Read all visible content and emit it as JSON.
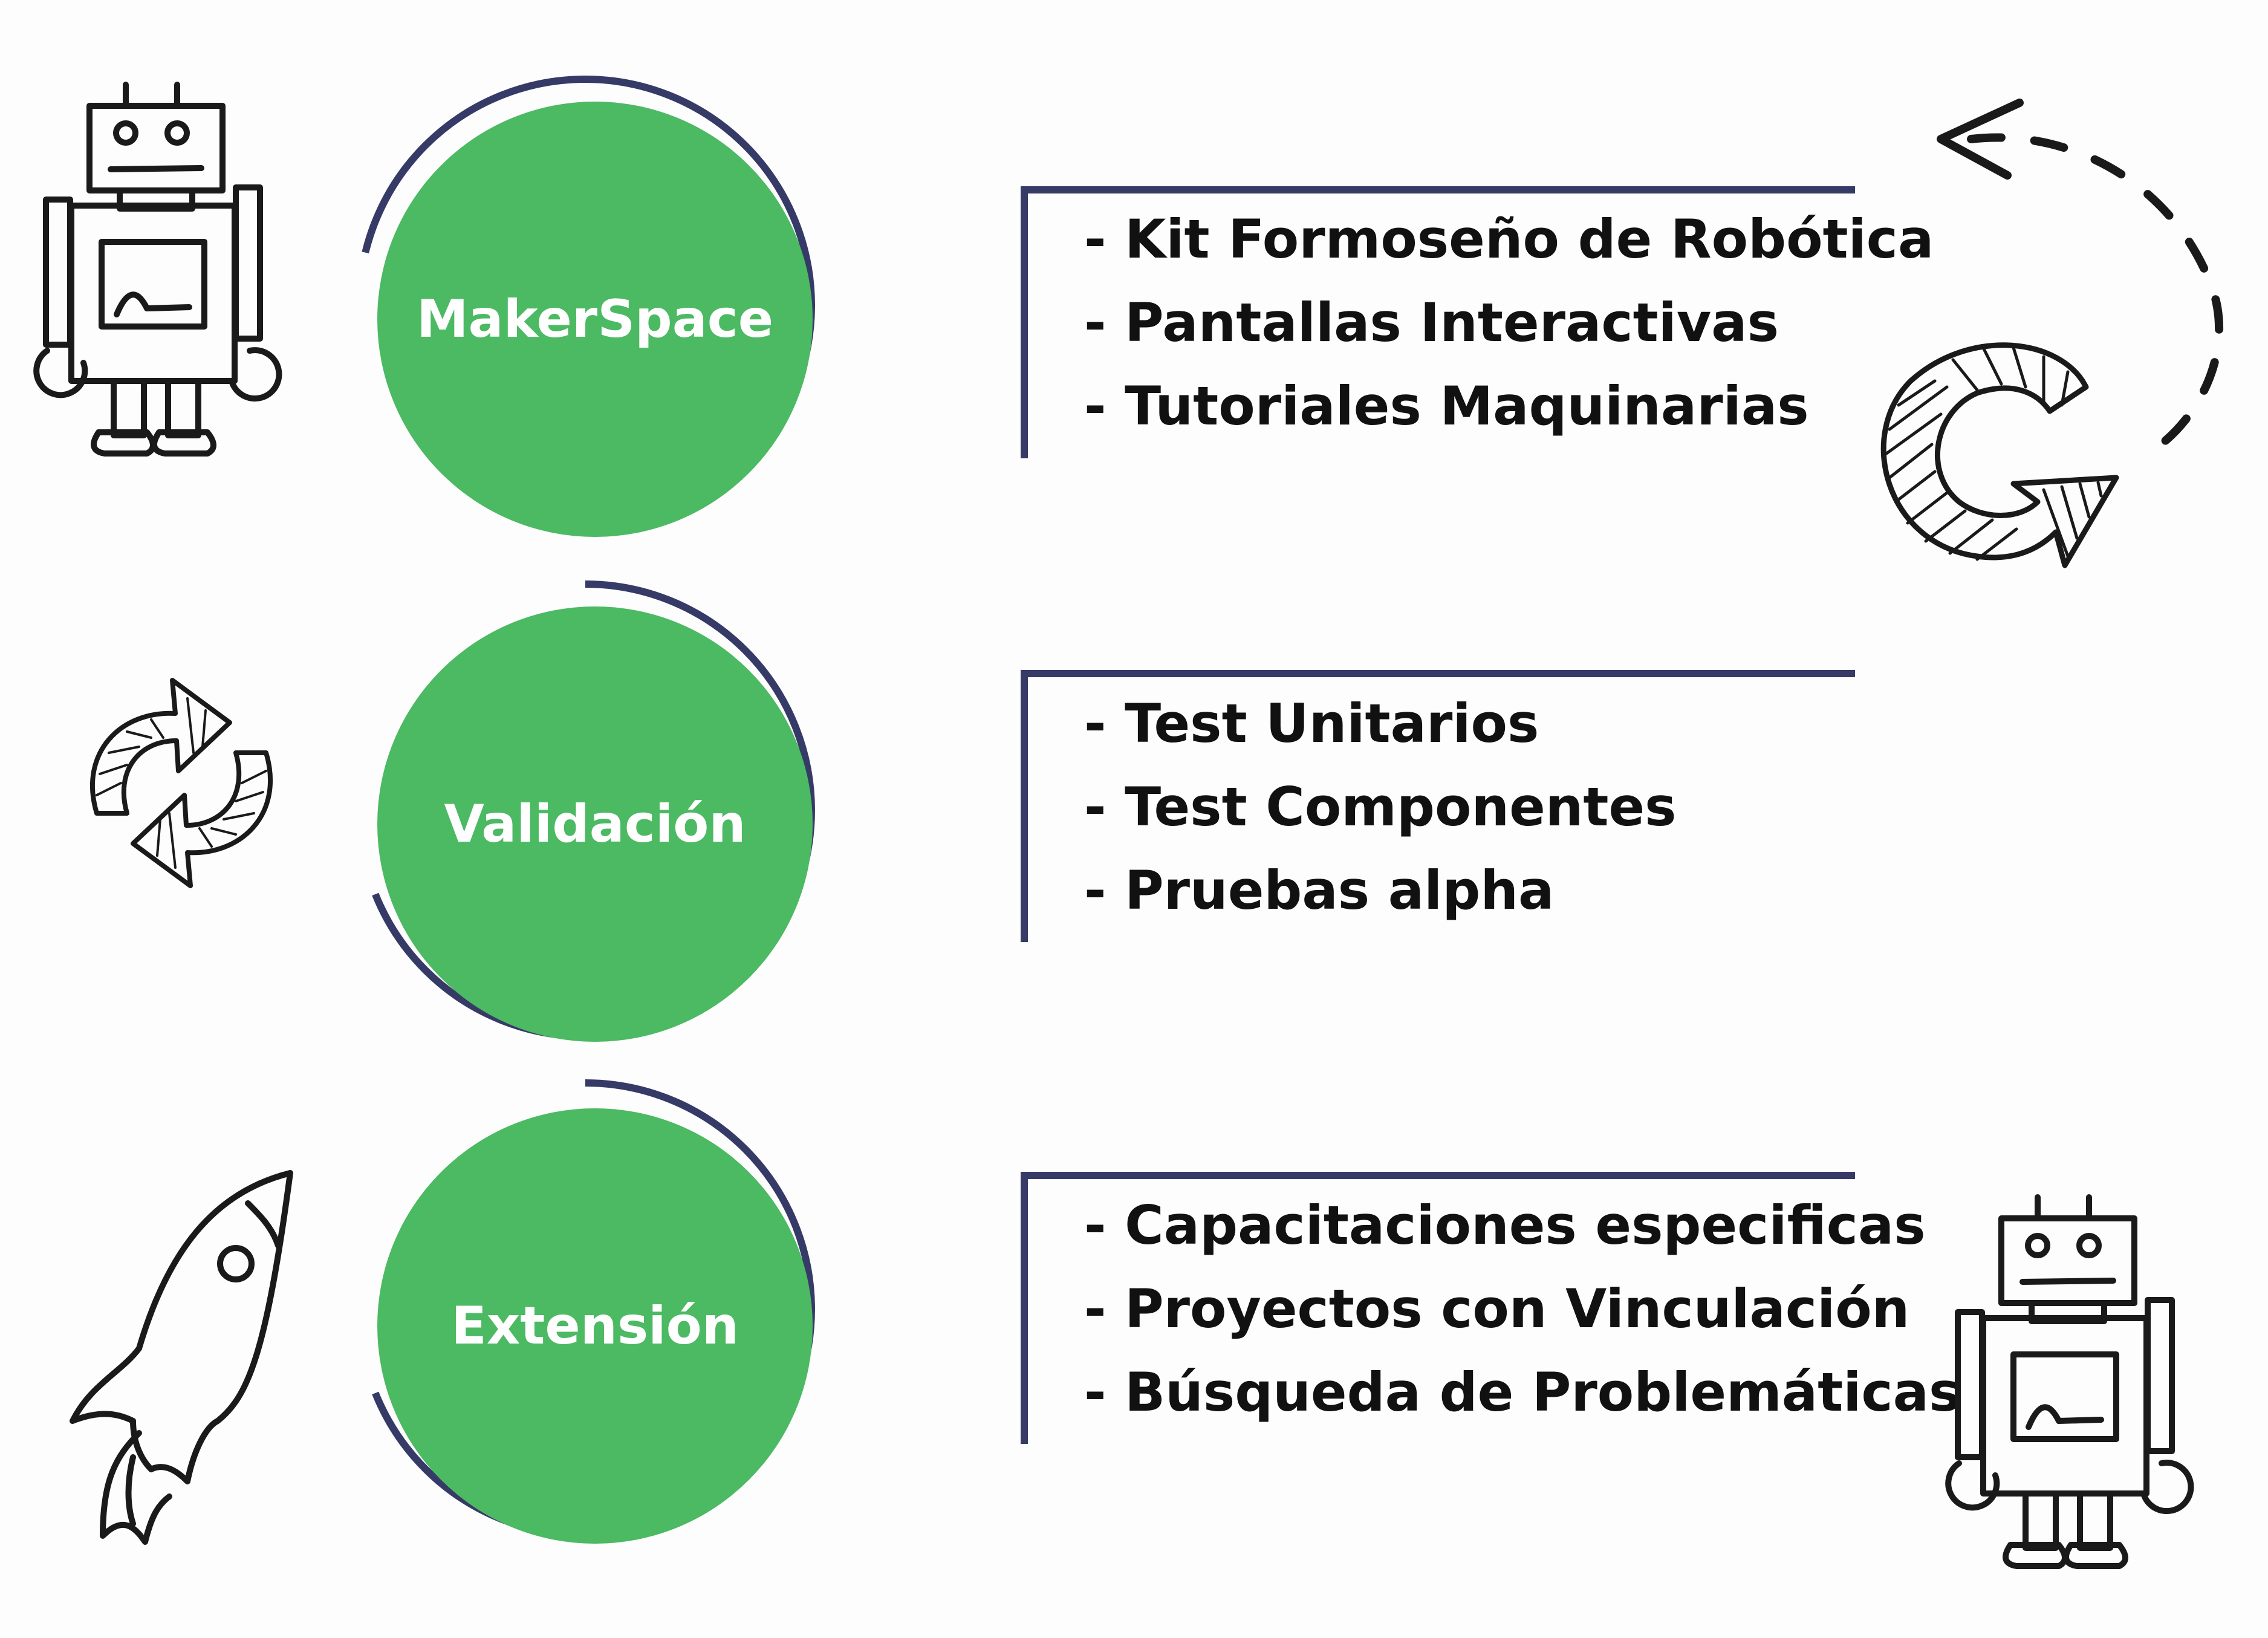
{
  "colors": {
    "green": "#4cb963",
    "navy": "#363a66",
    "text": "#111111",
    "sketch": "#1a1a1a",
    "background": "#fdfdfd"
  },
  "stages": [
    {
      "title": "MakerSpace",
      "items": [
        "- Kit Formoseño de Robótica",
        "- Pantallas Interactivas",
        "- Tutoriales Maquinarias"
      ]
    },
    {
      "title": "Validación",
      "items": [
        "- Test Unitarios",
        "- Test Componentes",
        "- Pruebas alpha"
      ]
    },
    {
      "title": "Extensión",
      "items": [
        "- Capacitaciones especificas",
        "- Proyectos con Vinculación",
        "- Búsqueda de Problemáticas"
      ]
    }
  ],
  "icons": [
    "robot-icon",
    "hatched-curved-arrow-icon",
    "dashed-arrow-icon",
    "refresh-cycle-icon",
    "rocket-icon",
    "robot-icon"
  ]
}
